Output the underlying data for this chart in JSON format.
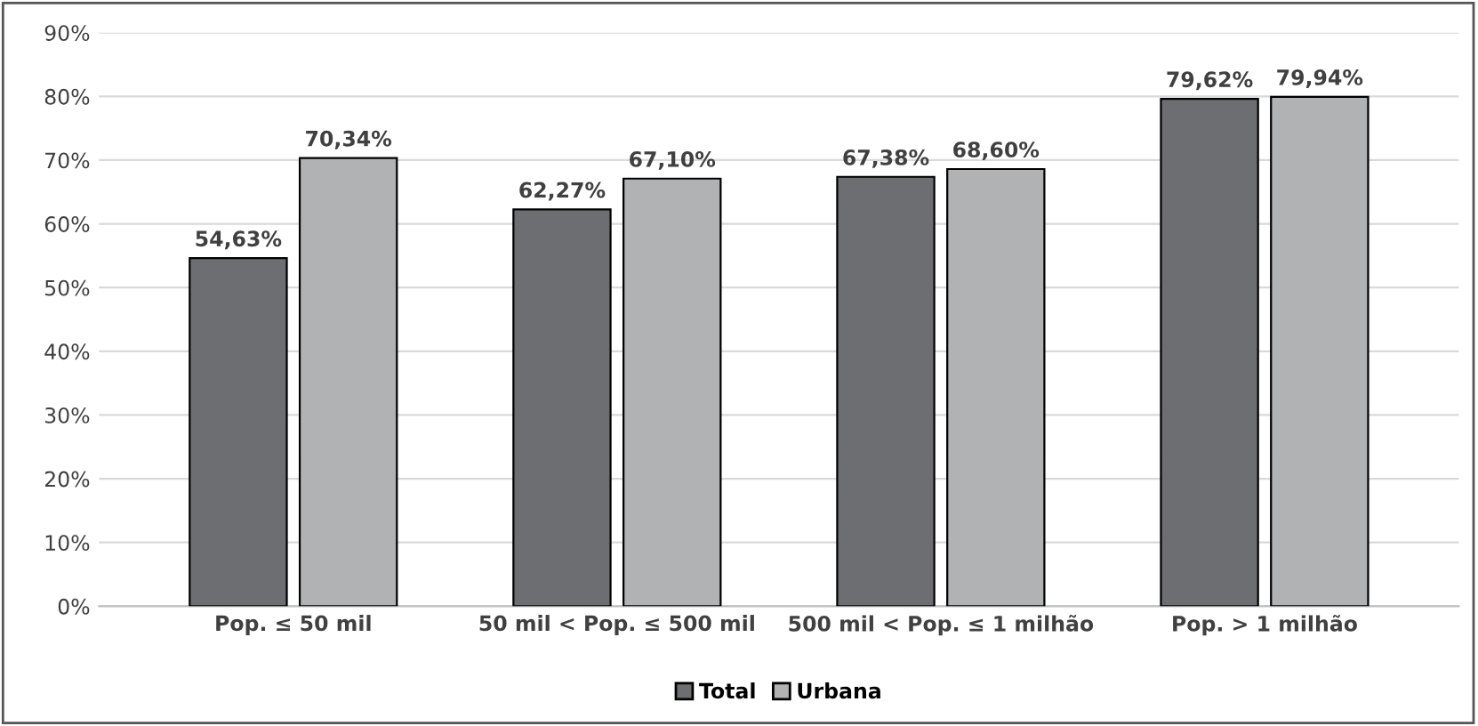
{
  "chart_data": {
    "type": "bar",
    "categories": [
      "Pop. ≤ 50 mil",
      "50 mil < Pop. ≤ 500 mil",
      "500 mil < Pop. ≤ 1 milhão",
      "Pop. > 1 milhão"
    ],
    "series": [
      {
        "name": "Total",
        "color": "#6d6e71",
        "values": [
          54.63,
          62.27,
          67.38,
          79.62
        ],
        "value_labels": [
          "54,63%",
          "62,27%",
          "67,38%",
          "79,62%"
        ]
      },
      {
        "name": "Urbana",
        "color": "#b1b2b4",
        "values": [
          70.34,
          67.1,
          68.6,
          79.94
        ],
        "value_labels": [
          "70,34%",
          "67,10%",
          "68,60%",
          "79,94%"
        ]
      }
    ],
    "ylim": [
      0,
      90
    ],
    "yticks": [
      {
        "value": 0,
        "label": "0%"
      },
      {
        "value": 10,
        "label": "10%"
      },
      {
        "value": 20,
        "label": "20%"
      },
      {
        "value": 30,
        "label": "30%"
      },
      {
        "value": 40,
        "label": "40%"
      },
      {
        "value": 50,
        "label": "50%"
      },
      {
        "value": 60,
        "label": "60%"
      },
      {
        "value": 70,
        "label": "70%"
      },
      {
        "value": 80,
        "label": "80%"
      },
      {
        "value": 90,
        "label": "90%"
      }
    ],
    "grid": "y",
    "legend": "bottom"
  }
}
